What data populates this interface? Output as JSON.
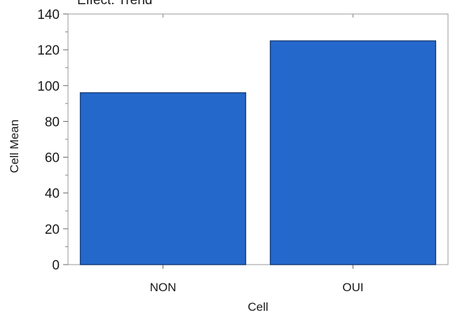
{
  "chart_data": {
    "type": "bar",
    "title": "Effect: Trend",
    "xlabel": "Cell",
    "ylabel": "Cell Mean",
    "categories": [
      "NON",
      "OUI"
    ],
    "values": [
      96,
      125
    ],
    "ylim": [
      0,
      140
    ],
    "yticks": [
      0,
      20,
      40,
      60,
      80,
      100,
      120,
      140
    ],
    "grid": false,
    "bar_color": "#2468cc",
    "bar_edge_color": "#1b3f7a"
  }
}
